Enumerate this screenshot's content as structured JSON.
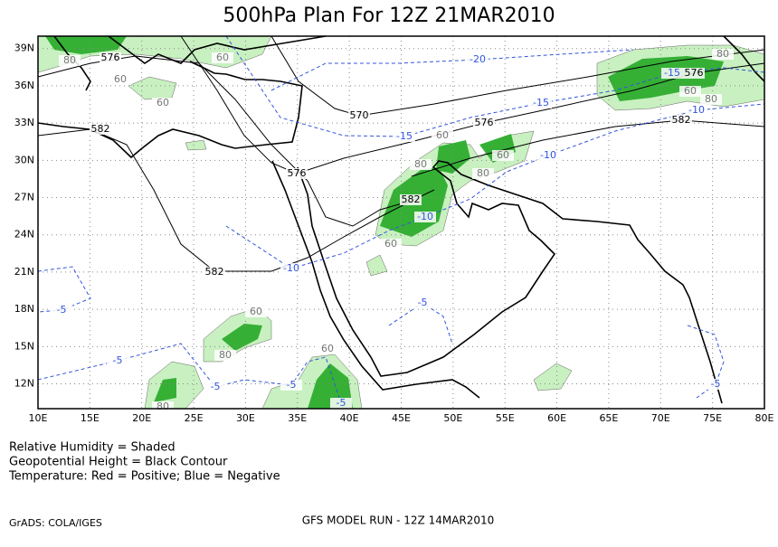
{
  "title": "500hPa Plan For 12Z 21MAR2010",
  "map": {
    "xlim": [
      10,
      80
    ],
    "ylim": [
      10,
      40
    ],
    "lon_ticks": [
      {
        "value": 10,
        "label": "10E"
      },
      {
        "value": 15,
        "label": "15E"
      },
      {
        "value": 20,
        "label": "20E"
      },
      {
        "value": 25,
        "label": "25E"
      },
      {
        "value": 30,
        "label": "30E"
      },
      {
        "value": 35,
        "label": "35E"
      },
      {
        "value": 40,
        "label": "40E"
      },
      {
        "value": 45,
        "label": "45E"
      },
      {
        "value": 50,
        "label": "50E"
      },
      {
        "value": 55,
        "label": "55E"
      },
      {
        "value": 60,
        "label": "60E"
      },
      {
        "value": 65,
        "label": "65E"
      },
      {
        "value": 70,
        "label": "70E"
      },
      {
        "value": 75,
        "label": "75E"
      },
      {
        "value": 80,
        "label": "80E"
      }
    ],
    "lat_ticks": [
      {
        "value": 12,
        "label": "12N"
      },
      {
        "value": 15,
        "label": "15N"
      },
      {
        "value": 18,
        "label": "18N"
      },
      {
        "value": 21,
        "label": "21N"
      },
      {
        "value": 24,
        "label": "24N"
      },
      {
        "value": 27,
        "label": "27N"
      },
      {
        "value": 30,
        "label": "30N"
      },
      {
        "value": 33,
        "label": "33N"
      },
      {
        "value": 36,
        "label": "36N"
      },
      {
        "value": 39,
        "label": "39N"
      }
    ],
    "contour_labels": [
      "576",
      "80",
      "60",
      "60",
      "60",
      "-20",
      "570",
      "-15",
      "576",
      "-15",
      "60",
      "-15",
      "576",
      "60",
      "80",
      "80",
      "-10",
      "582",
      "582",
      "576",
      "80",
      "80",
      "60",
      "-10",
      "582",
      "-10",
      "60",
      "-10",
      "582",
      "-5",
      "-5",
      "60",
      "80",
      "60",
      "-5",
      "-5",
      "-5",
      "-5",
      "-5",
      "80"
    ]
  },
  "legend": [
    "Relative Humidity = Shaded",
    "Geopotential Height = Black Contour",
    "Temperature: Red = Positive; Blue = Negative"
  ],
  "footer": {
    "credit": "GrADS: COLA/IGES",
    "run": "GFS MODEL RUN - 12Z 14MAR2010"
  }
}
